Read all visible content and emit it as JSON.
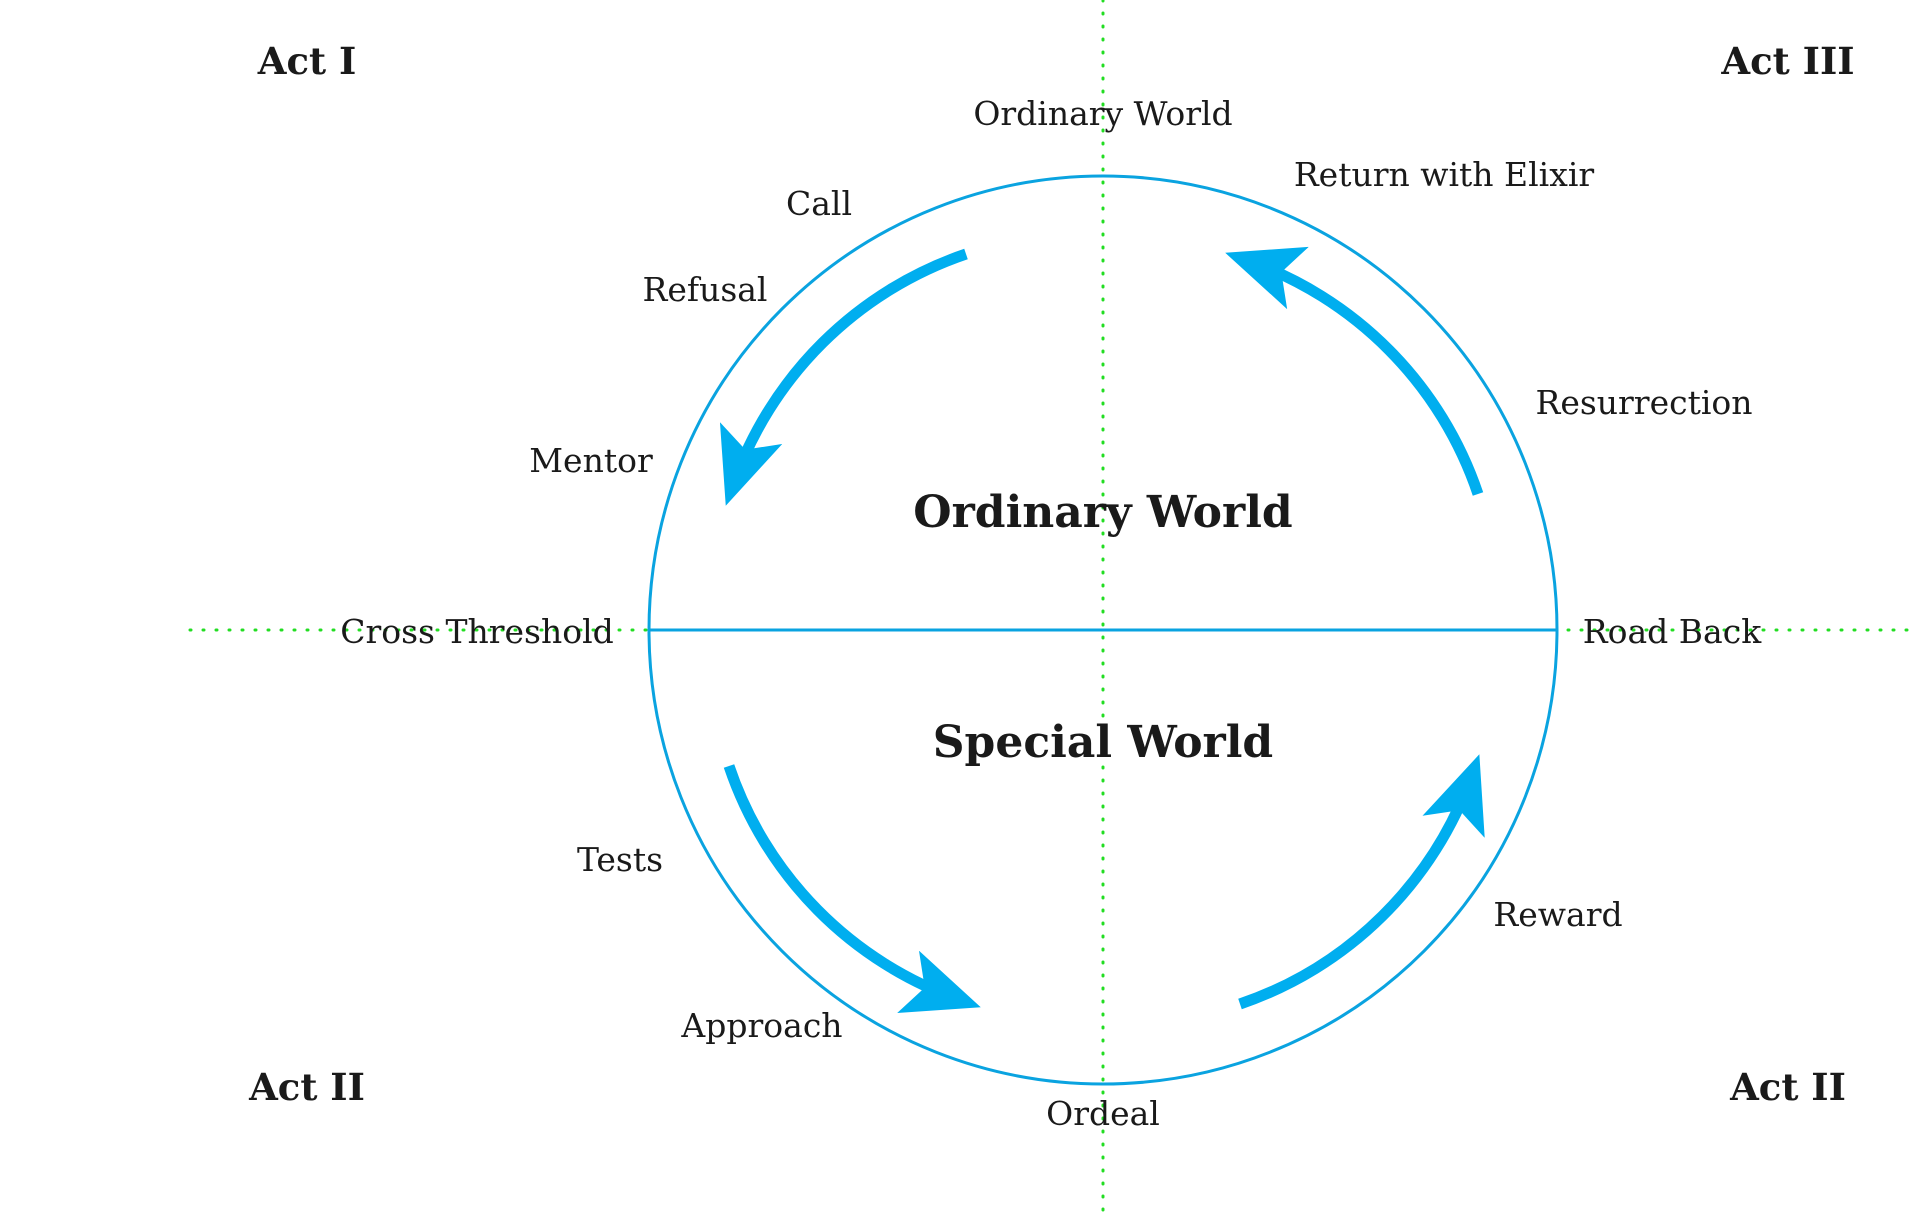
{
  "acts": {
    "top_left": "Act I",
    "top_right": "Act III",
    "bottom_left": "Act II",
    "bottom_right": "Act II"
  },
  "worlds": {
    "upper": "Ordinary World",
    "lower": "Special World"
  },
  "stages": {
    "ordinary_world": "Ordinary World",
    "call": "Call",
    "refusal": "Refusal",
    "mentor": "Mentor",
    "cross_threshold": "Cross Threshold",
    "tests": "Tests",
    "approach": "Approach",
    "ordeal": "Ordeal",
    "reward": "Reward",
    "road_back": "Road Back",
    "resurrection": "Resurrection",
    "return_with_elixir": "Return with Elixir"
  },
  "colors": {
    "circle": "#0aa3e0",
    "arrow": "#00aeef",
    "guide_lines": "#22dd22",
    "text": "#1a1a1a"
  }
}
